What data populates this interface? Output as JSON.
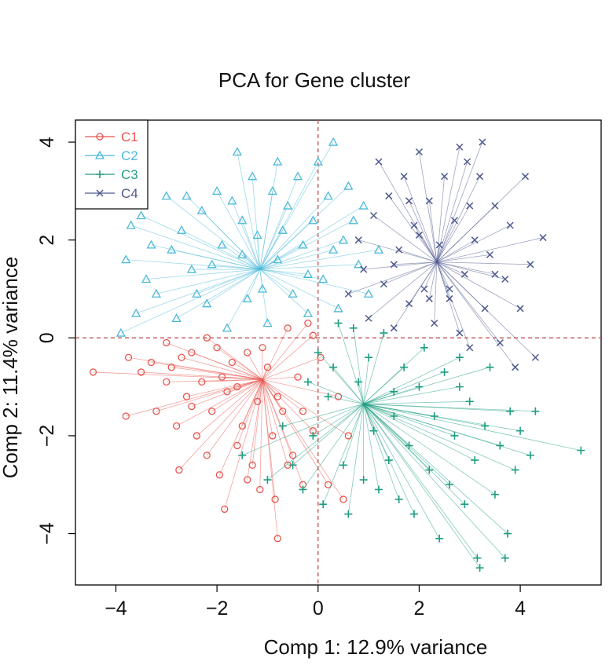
{
  "chart_data": {
    "type": "scatter",
    "title": "PCA for Gene cluster",
    "xlabel": "Comp 1: 12.9% variance",
    "ylabel": "Comp 2: 11.4% variance",
    "xlim": [
      -4.8,
      5.6
    ],
    "ylim": [
      -5.05,
      4.45
    ],
    "xticks": [
      -4,
      -2,
      0,
      2,
      4
    ],
    "yticks": [
      -4,
      -2,
      0,
      2,
      4
    ],
    "xtick_labels": [
      "−4",
      "−2",
      "0",
      "2",
      "4"
    ],
    "ytick_labels": [
      "−4",
      "−2",
      "0",
      "2",
      "4"
    ],
    "reference_lines": {
      "x": 0,
      "y": 0,
      "color": "#c0504d",
      "style": "dashed"
    },
    "legend_position": "top-left",
    "series": [
      {
        "name": "C1",
        "color": "#e8554e",
        "marker": "circle",
        "centroid": [
          -1.1,
          -0.85
        ],
        "points": [
          [
            -4.45,
            -0.7
          ],
          [
            -3.8,
            -1.6
          ],
          [
            -3.75,
            -0.4
          ],
          [
            -3.5,
            -0.7
          ],
          [
            -3.3,
            -0.5
          ],
          [
            -3.2,
            -1.5
          ],
          [
            -3.0,
            -0.9
          ],
          [
            -2.9,
            -0.6
          ],
          [
            -2.8,
            -1.8
          ],
          [
            -2.75,
            -2.7
          ],
          [
            -2.6,
            -1.2
          ],
          [
            -2.5,
            -0.3
          ],
          [
            -2.4,
            -2.0
          ],
          [
            -2.3,
            -0.9
          ],
          [
            -2.2,
            -2.4
          ],
          [
            -2.1,
            -1.5
          ],
          [
            -2.0,
            -0.2
          ],
          [
            -1.95,
            -2.8
          ],
          [
            -1.85,
            -3.5
          ],
          [
            -1.8,
            -1.1
          ],
          [
            -1.7,
            -0.5
          ],
          [
            -1.6,
            -2.2
          ],
          [
            -1.5,
            -1.8
          ],
          [
            -1.4,
            -0.3
          ],
          [
            -1.3,
            -2.6
          ],
          [
            -1.2,
            -1.3
          ],
          [
            -1.15,
            -3.1
          ],
          [
            -1.0,
            -0.6
          ],
          [
            -0.9,
            -2.0
          ],
          [
            -0.85,
            -3.3
          ],
          [
            -0.8,
            -4.1
          ],
          [
            -0.7,
            -1.5
          ],
          [
            -0.6,
            0.2
          ],
          [
            -0.5,
            -2.4
          ],
          [
            -0.4,
            -0.8
          ],
          [
            -0.3,
            -3.0
          ],
          [
            -0.2,
            0.3
          ],
          [
            -0.1,
            -1.9
          ],
          [
            0.05,
            -0.4
          ],
          [
            0.2,
            -3.0
          ],
          [
            0.4,
            -1.2
          ],
          [
            0.5,
            -3.3
          ],
          [
            0.6,
            -2.0
          ],
          [
            -3.0,
            -0.1
          ],
          [
            -2.7,
            -0.4
          ],
          [
            -2.5,
            -1.4
          ],
          [
            -2.2,
            0.0
          ],
          [
            -1.9,
            -0.8
          ],
          [
            -1.6,
            -1.0
          ],
          [
            -1.4,
            -2.9
          ],
          [
            -1.1,
            -0.2
          ],
          [
            -0.8,
            -1.2
          ],
          [
            -0.6,
            -2.6
          ],
          [
            -0.3,
            -1.5
          ],
          [
            -0.1,
            0.05
          ]
        ]
      },
      {
        "name": "C2",
        "color": "#4cb9d8",
        "marker": "triangle",
        "centroid": [
          -1.15,
          1.4
        ],
        "points": [
          [
            -3.9,
            0.1
          ],
          [
            -3.8,
            1.6
          ],
          [
            -3.7,
            2.3
          ],
          [
            -3.6,
            0.5
          ],
          [
            -3.5,
            2.5
          ],
          [
            -3.4,
            1.2
          ],
          [
            -3.2,
            0.9
          ],
          [
            -3.0,
            2.9
          ],
          [
            -2.9,
            1.8
          ],
          [
            -2.8,
            0.4
          ],
          [
            -2.7,
            2.2
          ],
          [
            -2.5,
            1.4
          ],
          [
            -2.3,
            2.6
          ],
          [
            -2.2,
            0.7
          ],
          [
            -2.0,
            3.0
          ],
          [
            -1.9,
            1.9
          ],
          [
            -1.8,
            0.2
          ],
          [
            -1.6,
            3.8
          ],
          [
            -1.5,
            2.4
          ],
          [
            -1.4,
            0.8
          ],
          [
            -1.3,
            3.3
          ],
          [
            -1.2,
            2.1
          ],
          [
            -1.0,
            0.3
          ],
          [
            -0.9,
            3.0
          ],
          [
            -0.8,
            1.6
          ],
          [
            -0.6,
            2.7
          ],
          [
            -0.5,
            0.9
          ],
          [
            -0.4,
            3.3
          ],
          [
            -0.3,
            1.9
          ],
          [
            -0.2,
            0.5
          ],
          [
            -0.1,
            2.4
          ],
          [
            0.0,
            3.6
          ],
          [
            0.1,
            1.2
          ],
          [
            0.2,
            2.9
          ],
          [
            0.3,
            4.0
          ],
          [
            0.4,
            0.6
          ],
          [
            0.5,
            2.0
          ],
          [
            0.6,
            3.1
          ],
          [
            0.8,
            1.5
          ],
          [
            0.9,
            2.7
          ],
          [
            1.0,
            0.9
          ],
          [
            1.2,
            1.8
          ],
          [
            -3.3,
            1.9
          ],
          [
            -2.6,
            2.9
          ],
          [
            -2.1,
            1.5
          ],
          [
            -1.7,
            2.8
          ],
          [
            -1.1,
            1.0
          ],
          [
            -0.7,
            2.2
          ],
          [
            -0.2,
            1.3
          ],
          [
            0.3,
            1.8
          ],
          [
            0.7,
            2.4
          ],
          [
            -2.4,
            0.9
          ],
          [
            -1.5,
            1.7
          ],
          [
            -0.8,
            3.6
          ]
        ]
      },
      {
        "name": "C3",
        "color": "#1e9e82",
        "marker": "plus",
        "centroid": [
          0.9,
          -1.35
        ],
        "points": [
          [
            -1.5,
            -2.4
          ],
          [
            -1.0,
            -2.9
          ],
          [
            -0.7,
            -1.8
          ],
          [
            -0.5,
            -2.6
          ],
          [
            -0.3,
            -3.1
          ],
          [
            -0.1,
            -2.0
          ],
          [
            0.0,
            -0.3
          ],
          [
            0.1,
            -3.4
          ],
          [
            0.2,
            -1.2
          ],
          [
            0.4,
            0.3
          ],
          [
            0.5,
            -2.6
          ],
          [
            0.6,
            -3.6
          ],
          [
            0.7,
            0.2
          ],
          [
            0.8,
            -0.9
          ],
          [
            0.9,
            -2.9
          ],
          [
            1.0,
            -0.4
          ],
          [
            1.1,
            -1.9
          ],
          [
            1.2,
            -3.1
          ],
          [
            1.3,
            0.1
          ],
          [
            1.4,
            -2.5
          ],
          [
            1.5,
            -1.1
          ],
          [
            1.6,
            -3.3
          ],
          [
            1.7,
            -0.6
          ],
          [
            1.8,
            -2.2
          ],
          [
            1.9,
            -3.6
          ],
          [
            2.0,
            -1.0
          ],
          [
            2.1,
            -0.2
          ],
          [
            2.2,
            -2.7
          ],
          [
            2.3,
            -1.6
          ],
          [
            2.4,
            -4.1
          ],
          [
            2.5,
            -0.7
          ],
          [
            2.6,
            -3.0
          ],
          [
            2.7,
            -2.0
          ],
          [
            2.8,
            -0.4
          ],
          [
            2.9,
            -3.4
          ],
          [
            3.0,
            -1.3
          ],
          [
            3.1,
            -2.5
          ],
          [
            3.2,
            -4.7
          ],
          [
            3.3,
            -1.8
          ],
          [
            3.4,
            -0.6
          ],
          [
            3.5,
            -3.2
          ],
          [
            3.6,
            -2.2
          ],
          [
            3.7,
            -4.5
          ],
          [
            3.8,
            -1.5
          ],
          [
            3.9,
            -2.7
          ],
          [
            4.0,
            -1.9
          ],
          [
            4.2,
            -2.4
          ],
          [
            4.3,
            -1.5
          ],
          [
            5.2,
            -2.3
          ],
          [
            3.75,
            -4.0
          ],
          [
            3.15,
            -4.5
          ],
          [
            2.8,
            -1.0
          ],
          [
            1.5,
            -1.6
          ],
          [
            0.3,
            -0.6
          ],
          [
            -0.2,
            -0.9
          ]
        ]
      },
      {
        "name": "C4",
        "color": "#4f5a8e",
        "marker": "x",
        "centroid": [
          2.35,
          1.55
        ],
        "points": [
          [
            0.6,
            0.9
          ],
          [
            0.8,
            2.0
          ],
          [
            0.9,
            1.4
          ],
          [
            1.0,
            0.4
          ],
          [
            1.1,
            2.5
          ],
          [
            1.2,
            3.6
          ],
          [
            1.3,
            1.1
          ],
          [
            1.4,
            2.9
          ],
          [
            1.5,
            0.2
          ],
          [
            1.6,
            1.8
          ],
          [
            1.7,
            3.3
          ],
          [
            1.8,
            0.7
          ],
          [
            1.9,
            2.3
          ],
          [
            2.0,
            3.8
          ],
          [
            2.1,
            1.0
          ],
          [
            2.2,
            2.8
          ],
          [
            2.3,
            0.3
          ],
          [
            2.4,
            1.9
          ],
          [
            2.5,
            3.3
          ],
          [
            2.6,
            0.8
          ],
          [
            2.7,
            2.4
          ],
          [
            2.8,
            3.9
          ],
          [
            2.9,
            1.3
          ],
          [
            3.0,
            -0.2
          ],
          [
            3.1,
            2.0
          ],
          [
            3.2,
            3.3
          ],
          [
            3.3,
            0.6
          ],
          [
            3.4,
            1.7
          ],
          [
            3.5,
            2.7
          ],
          [
            3.6,
            -0.1
          ],
          [
            3.7,
            1.2
          ],
          [
            3.8,
            2.3
          ],
          [
            3.9,
            -0.6
          ],
          [
            4.0,
            0.6
          ],
          [
            4.1,
            3.3
          ],
          [
            4.2,
            1.5
          ],
          [
            4.3,
            -0.4
          ],
          [
            4.45,
            2.05
          ],
          [
            3.25,
            4.0
          ],
          [
            2.95,
            3.6
          ],
          [
            2.0,
            2.1
          ],
          [
            1.5,
            1.5
          ],
          [
            2.6,
            1.0
          ],
          [
            3.0,
            2.7
          ],
          [
            1.8,
            2.8
          ],
          [
            2.2,
            0.8
          ],
          [
            3.5,
            1.3
          ],
          [
            2.8,
            0.1
          ]
        ]
      }
    ]
  }
}
